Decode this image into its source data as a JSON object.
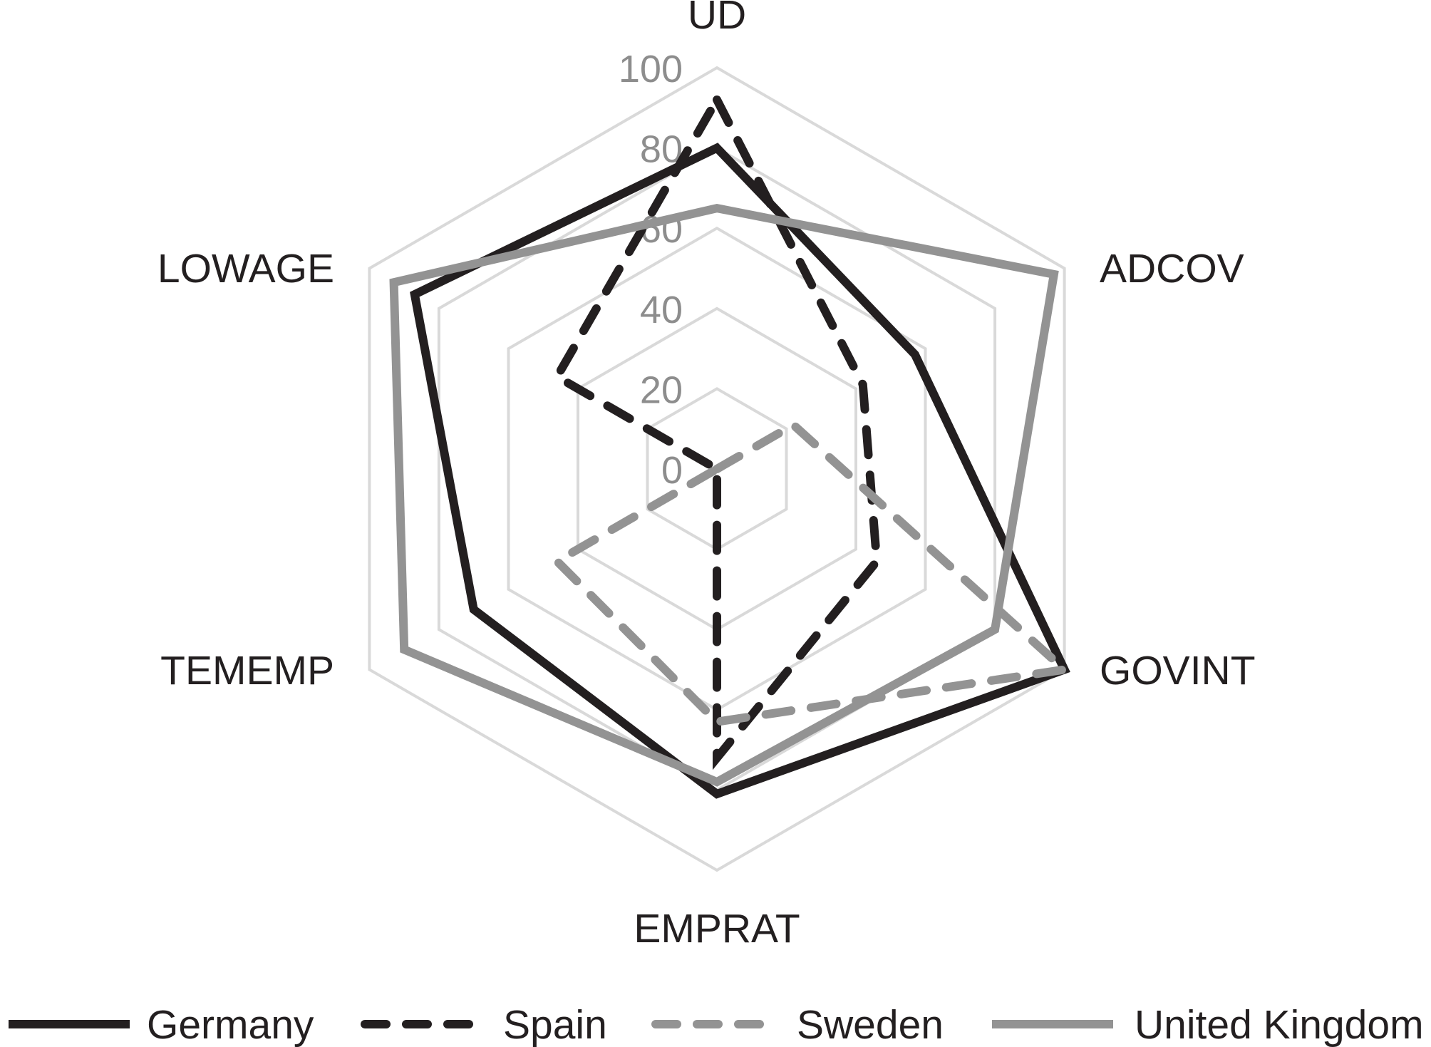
{
  "chart_data": {
    "type": "radar",
    "axes": [
      "UD",
      "ADCOV",
      "GOVINT",
      "EMPRAT",
      "TEMEMP",
      "LOWAGE"
    ],
    "r_ticks": [
      "0",
      "20",
      "40",
      "60",
      "80",
      "100"
    ],
    "r_range": [
      0,
      100
    ],
    "grid": true,
    "legend_position": "bottom",
    "series": [
      {
        "name": "Germany",
        "values": [
          80,
          57,
          100,
          81,
          70,
          87
        ],
        "color": "#231f20",
        "dash": "solid"
      },
      {
        "name": "Spain",
        "values": [
          92,
          42,
          46,
          72,
          0,
          46
        ],
        "color": "#231f20",
        "dash": "dashed"
      },
      {
        "name": "Sweden",
        "values": [
          0,
          22,
          100,
          63,
          46,
          0
        ],
        "color": "#939393",
        "dash": "dashed"
      },
      {
        "name": "United Kingdom",
        "values": [
          65,
          97,
          80,
          78,
          90,
          93
        ],
        "color": "#939393",
        "dash": "solid"
      }
    ]
  }
}
